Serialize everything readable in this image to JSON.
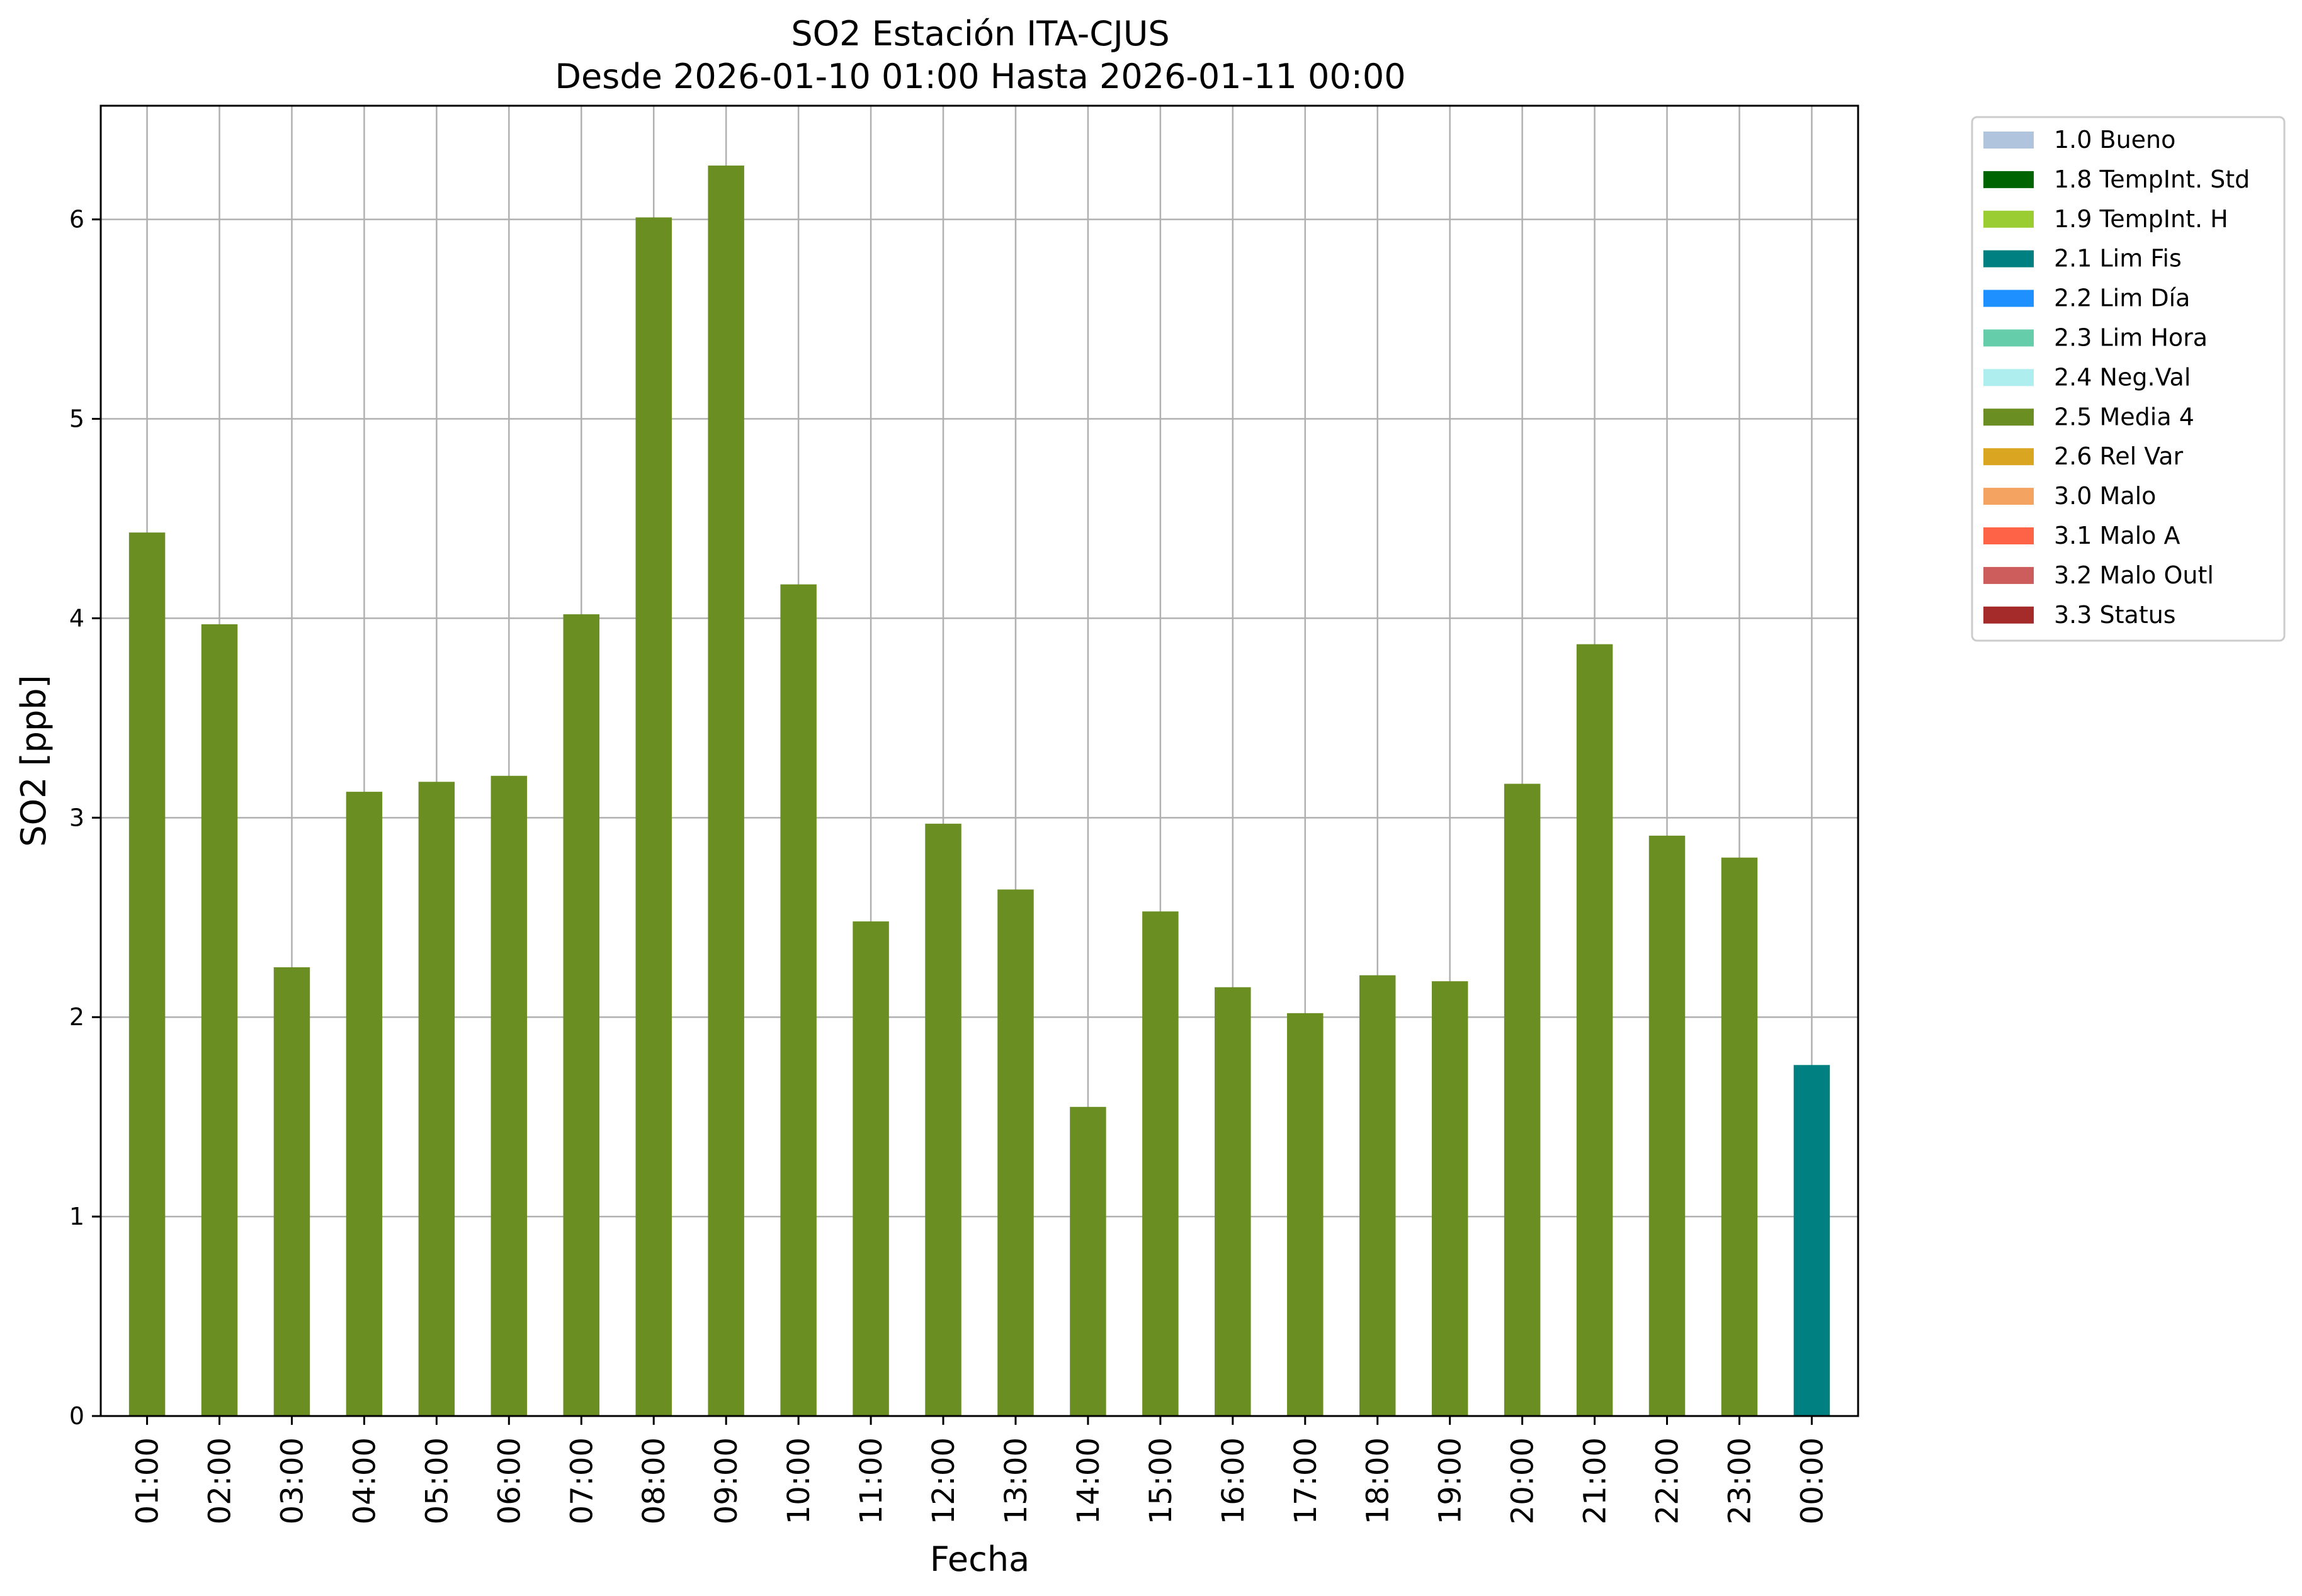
{
  "chart_data": {
    "type": "bar",
    "title": "SO2 Estación ITA-CJUS",
    "subtitle": "Desde 2026-01-10 01:00 Hasta 2026-01-11 00:00",
    "xlabel": "Fecha",
    "ylabel": "SO2 [ppb]",
    "ylim": [
      0,
      6.57
    ],
    "yticks": [
      "0",
      "1",
      "2",
      "3",
      "4",
      "5",
      "6"
    ],
    "grid": true,
    "legend_position": "outside-right",
    "categories": [
      "01:00",
      "02:00",
      "03:00",
      "04:00",
      "05:00",
      "06:00",
      "07:00",
      "08:00",
      "09:00",
      "10:00",
      "11:00",
      "12:00",
      "13:00",
      "14:00",
      "15:00",
      "16:00",
      "17:00",
      "18:00",
      "19:00",
      "20:00",
      "21:00",
      "22:00",
      "23:00",
      "00:00"
    ],
    "values": [
      4.43,
      3.97,
      2.25,
      3.13,
      3.18,
      3.21,
      4.02,
      6.01,
      6.27,
      4.17,
      2.48,
      2.97,
      2.64,
      1.55,
      2.53,
      2.15,
      2.02,
      2.21,
      2.18,
      3.17,
      3.87,
      2.91,
      2.8,
      1.76
    ],
    "bar_flags": [
      "2.5 Media 4",
      "2.5 Media 4",
      "2.5 Media 4",
      "2.5 Media 4",
      "2.5 Media 4",
      "2.5 Media 4",
      "2.5 Media 4",
      "2.5 Media 4",
      "2.5 Media 4",
      "2.5 Media 4",
      "2.5 Media 4",
      "2.5 Media 4",
      "2.5 Media 4",
      "2.5 Media 4",
      "2.5 Media 4",
      "2.5 Media 4",
      "2.5 Media 4",
      "2.5 Media 4",
      "2.5 Media 4",
      "2.5 Media 4",
      "2.5 Media 4",
      "2.5 Media 4",
      "2.5 Media 4",
      "2.1 Lim Fis"
    ],
    "legend": [
      {
        "label": "1.0 Bueno",
        "color": "#b0c4de"
      },
      {
        "label": "1.8 TempInt. Std",
        "color": "#006400"
      },
      {
        "label": "1.9 TempInt. H",
        "color": "#9acd32"
      },
      {
        "label": "2.1 Lim Fis",
        "color": "#008080"
      },
      {
        "label": "2.2 Lim Día",
        "color": "#1e90ff"
      },
      {
        "label": "2.3 Lim Hora",
        "color": "#66cdaa"
      },
      {
        "label": "2.4 Neg.Val",
        "color": "#afeeee"
      },
      {
        "label": "2.5 Media 4",
        "color": "#6b8e23"
      },
      {
        "label": "2.6 Rel Var",
        "color": "#daa520"
      },
      {
        "label": "3.0 Malo",
        "color": "#f4a460"
      },
      {
        "label": "3.1 Malo A",
        "color": "#ff6347"
      },
      {
        "label": "3.2 Malo Outl",
        "color": "#cd5c5c"
      },
      {
        "label": "3.3 Status",
        "color": "#a52a2a"
      }
    ]
  }
}
